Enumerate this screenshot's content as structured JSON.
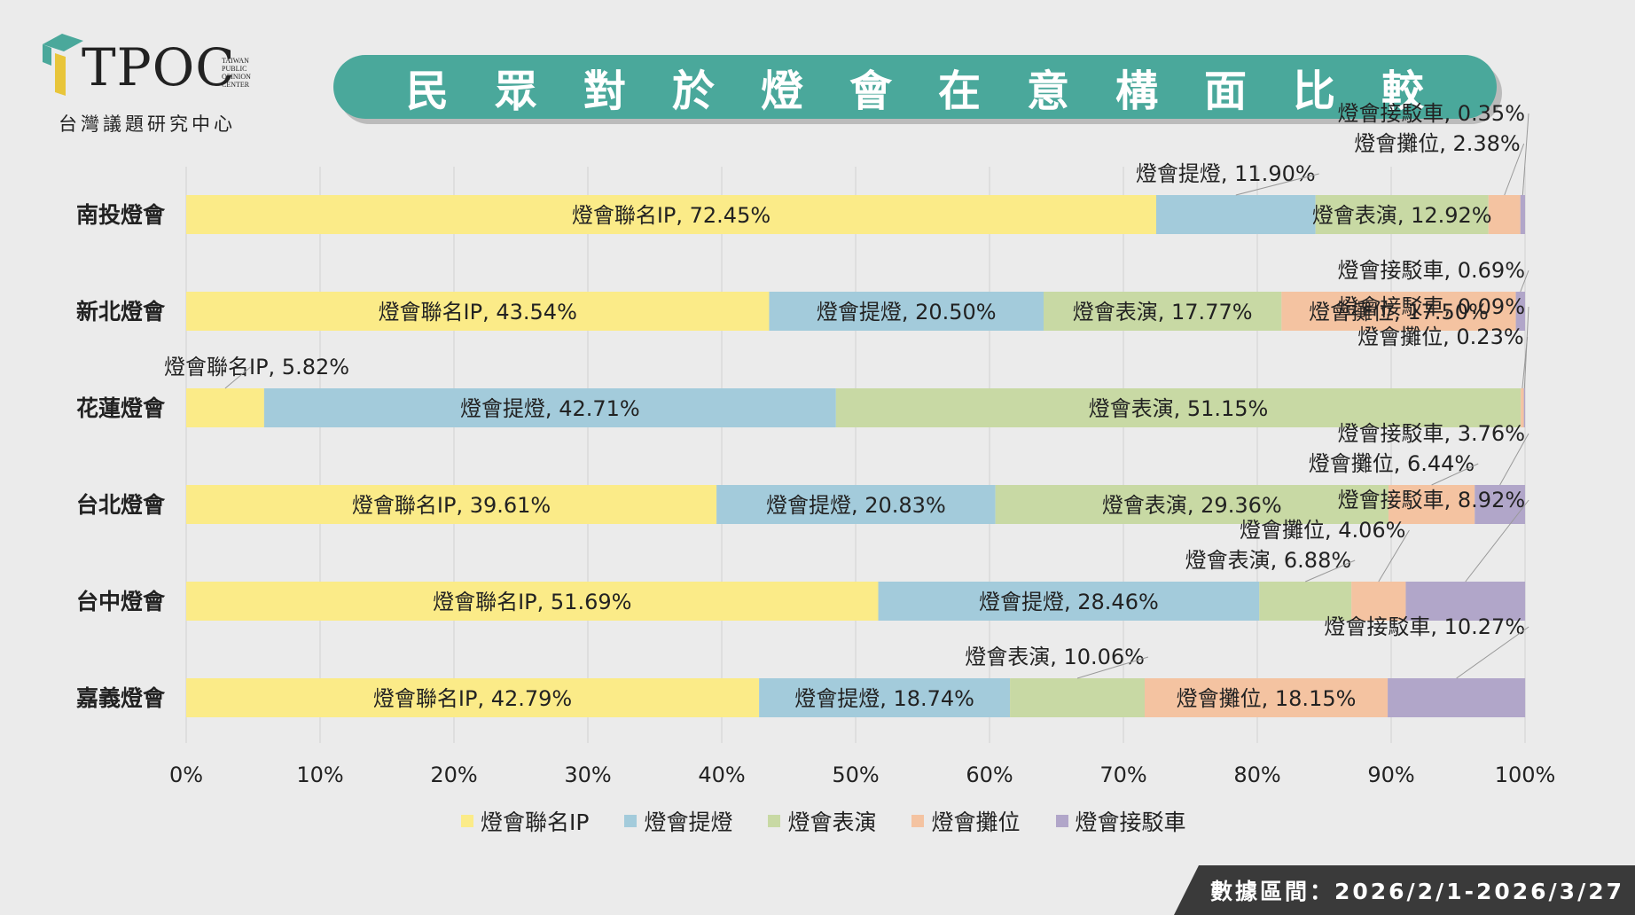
{
  "logo": {
    "mark_text": "TPOC",
    "side_lines": [
      "TAIWAN",
      "PUBLIC",
      "OPINION",
      "CENTER"
    ],
    "subtitle": "台灣議題研究中心",
    "colors": {
      "teal": "#4aa89b",
      "gold": "#e8c53a",
      "red": "#c0392b"
    }
  },
  "title": "民眾對於燈會在意構面比較",
  "footer": "數據區間：2026/2/1-2026/3/27",
  "colors": {
    "燈會聯名IP": "#fbeb88",
    "燈會提燈": "#a3cbdb",
    "燈會表演": "#c8d9a4",
    "燈會攤位": "#f4c3a1",
    "燈會接駁車": "#b1a6c9",
    "title_bg": "#4aa89b",
    "background": "#ebebeb"
  },
  "chart_data": {
    "type": "bar",
    "orientation": "horizontal",
    "stacked": "100%",
    "categories": [
      "南投燈會",
      "新北燈會",
      "花蓮燈會",
      "台北燈會",
      "台中燈會",
      "嘉義燈會"
    ],
    "series": [
      {
        "name": "燈會聯名IP",
        "values": [
          72.45,
          43.54,
          5.82,
          39.61,
          51.69,
          42.79
        ]
      },
      {
        "name": "燈會提燈",
        "values": [
          11.9,
          20.5,
          42.71,
          20.83,
          28.46,
          18.74
        ]
      },
      {
        "name": "燈會表演",
        "values": [
          12.92,
          17.77,
          51.15,
          29.36,
          6.88,
          10.06
        ]
      },
      {
        "name": "燈會攤位",
        "values": [
          2.38,
          17.5,
          0.23,
          6.44,
          4.06,
          18.15
        ]
      },
      {
        "name": "燈會接駁車",
        "values": [
          0.35,
          0.69,
          0.09,
          3.76,
          8.92,
          10.27
        ]
      }
    ],
    "label_format": "{series}, {value}%",
    "xlim": [
      0,
      100
    ],
    "xticks": [
      "0%",
      "10%",
      "20%",
      "30%",
      "40%",
      "50%",
      "60%",
      "70%",
      "80%",
      "90%",
      "100%"
    ],
    "grid": "vertical",
    "legend": "bottom",
    "xlabel": "",
    "ylabel": ""
  }
}
